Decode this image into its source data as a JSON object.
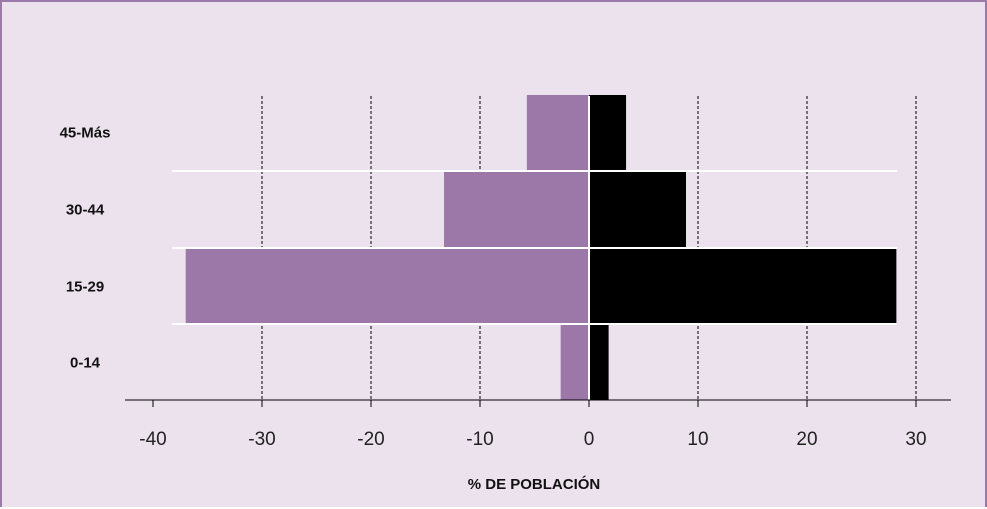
{
  "chart_data": {
    "type": "bar",
    "orientation": "horizontal",
    "categories": [
      "45-Más",
      "30-44",
      "15-29",
      "0-14"
    ],
    "series": [
      {
        "values": [
          -5.7,
          -13.3,
          -37.0,
          -2.6
        ],
        "color": "#9c78a8"
      },
      {
        "values": [
          3.4,
          8.9,
          28.2,
          1.8
        ],
        "color": "#000000"
      }
    ],
    "xlabel": "% DE POBLACIÓN",
    "ylabel": "",
    "title": "",
    "xlim": [
      -40,
      30
    ],
    "xticks": [
      -40,
      -30,
      -20,
      -10,
      0,
      10,
      20,
      30
    ],
    "xtick_labels": [
      "-40",
      "-30",
      "-20",
      "-10",
      "0",
      "10",
      "20",
      "30"
    ],
    "grid": "vertical-dashed",
    "legend": "none"
  },
  "colors": {
    "background": "#ece2ee",
    "border": "#9c7aa8"
  }
}
